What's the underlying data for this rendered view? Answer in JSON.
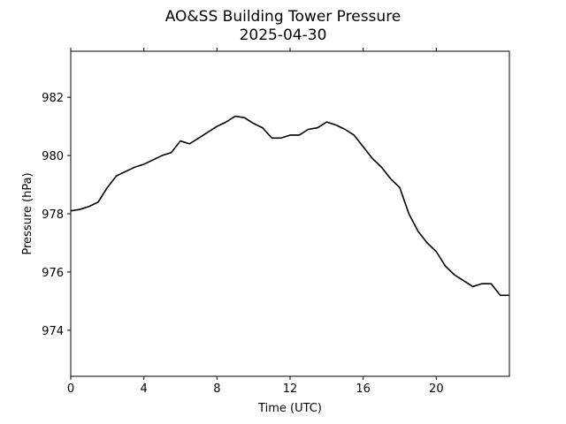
{
  "chart_data": {
    "type": "line",
    "title": "AO&SS Building Tower Pressure",
    "subtitle": "2025-04-30",
    "x_label": "Time (UTC)",
    "y_label": "Pressure (hPa)",
    "x": [
      0,
      0.5,
      1,
      1.5,
      2,
      2.5,
      3,
      3.5,
      4,
      4.5,
      5,
      5.5,
      6,
      6.5,
      7,
      7.5,
      8,
      8.5,
      9,
      9.5,
      10,
      10.5,
      11,
      11.5,
      12,
      12.5,
      13,
      13.5,
      14,
      14.5,
      15,
      15.5,
      16,
      16.5,
      17,
      17.5,
      18,
      18.5,
      19,
      19.5,
      20,
      20.5,
      21,
      21.5,
      22,
      22.5,
      23,
      23.5,
      24
    ],
    "series": [
      {
        "color": "#000000",
        "values": [
          978.1,
          978.15,
          978.25,
          978.4,
          978.9,
          979.3,
          979.45,
          979.6,
          979.7,
          979.85,
          980.0,
          980.1,
          980.5,
          980.4,
          980.6,
          980.8,
          981.0,
          981.15,
          981.35,
          981.3,
          981.1,
          980.95,
          980.6,
          980.6,
          980.7,
          980.7,
          980.9,
          980.95,
          981.15,
          981.05,
          980.9,
          980.7,
          980.3,
          979.9,
          979.6,
          979.2,
          978.9,
          978.0,
          977.4,
          977.0,
          976.7,
          976.2,
          975.9,
          975.7,
          975.5,
          975.6,
          975.6,
          975.2,
          975.2
        ]
      }
    ],
    "xlim": [
      0,
      24
    ],
    "xticks": [
      0,
      4,
      8,
      12,
      16,
      20
    ],
    "ylim": [
      972.42,
      983.58
    ],
    "yticks": [
      974,
      976,
      978,
      980,
      982
    ]
  }
}
